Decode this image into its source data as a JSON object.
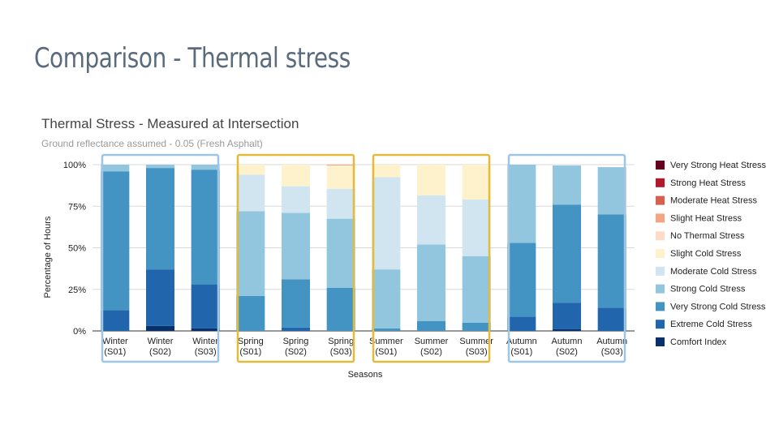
{
  "slide": {
    "title": "Comparison - Thermal stress"
  },
  "chart_data": {
    "type": "bar",
    "stacked": true,
    "title": "Thermal Stress - Measured at Intersection",
    "subtitle": "Ground reflectance assumed - 0.05 (Fresh Asphalt)",
    "xlabel": "Seasons",
    "ylabel": "Percentage of Hours",
    "ylim": [
      0,
      100
    ],
    "yticks": [
      "0%",
      "25%",
      "50%",
      "75%",
      "100%"
    ],
    "legend_position": "right",
    "grid": true,
    "categories": [
      [
        "Winter",
        "(S01)"
      ],
      [
        "Winter",
        "(S02)"
      ],
      [
        "Winter",
        "(S03)"
      ],
      [
        "Spring",
        "(S01)"
      ],
      [
        "Spring",
        "(S02)"
      ],
      [
        "Spring",
        "(S03)"
      ],
      [
        "Summer",
        "(S01)"
      ],
      [
        "Summer",
        "(S02)"
      ],
      [
        "Summer",
        "(S03)"
      ],
      [
        "Autumn",
        "(S01)"
      ],
      [
        "Autumn",
        "(S02)"
      ],
      [
        "Autumn",
        "(S03)"
      ]
    ],
    "series": [
      {
        "name": "Comfort Index",
        "color": "#08306b",
        "values": [
          0,
          3,
          1.5,
          0,
          0,
          0,
          0,
          0,
          0,
          0,
          1,
          0
        ]
      },
      {
        "name": "Extreme Cold Stress",
        "color": "#2166ac",
        "values": [
          12.5,
          34,
          26.5,
          0,
          2,
          0,
          0,
          0,
          0,
          8.5,
          16,
          14
        ]
      },
      {
        "name": "Very Strong Cold Stress",
        "color": "#4393c3",
        "values": [
          83.5,
          61,
          69,
          21,
          29,
          26,
          1.5,
          6,
          5,
          44.5,
          59,
          56
        ]
      },
      {
        "name": "Strong Cold Stress",
        "color": "#92c5de",
        "values": [
          4,
          2,
          3,
          51,
          40,
          41.5,
          35.5,
          46,
          40,
          47,
          23.5,
          28.5
        ]
      },
      {
        "name": "Moderate Cold Stress",
        "color": "#d1e5f0",
        "values": [
          0,
          0,
          0,
          22,
          16,
          18,
          55.5,
          29.5,
          34,
          0,
          0,
          0
        ]
      },
      {
        "name": "Slight Cold Stress",
        "color": "#fdf2cc",
        "values": [
          0,
          0,
          0,
          6,
          13,
          14,
          7.5,
          18.5,
          21,
          0,
          0,
          0
        ]
      },
      {
        "name": "No Thermal Stress",
        "color": "#fddbc7",
        "values": [
          0,
          0,
          0,
          0,
          0,
          0,
          0,
          0,
          0,
          0,
          0,
          0
        ]
      },
      {
        "name": "Slight Heat Stress",
        "color": "#f4a582",
        "values": [
          0,
          0,
          0,
          0,
          0,
          0.5,
          0,
          0,
          0,
          0,
          0,
          0
        ]
      },
      {
        "name": "Moderate Heat Stress",
        "color": "#d6604d",
        "values": [
          0,
          0,
          0,
          0,
          0,
          0,
          0,
          0,
          0,
          0,
          0,
          0
        ]
      },
      {
        "name": "Strong Heat Stress",
        "color": "#b2182b",
        "values": [
          0,
          0,
          0,
          0,
          0,
          0,
          0,
          0,
          0,
          0,
          0,
          0
        ]
      },
      {
        "name": "Very Strong Heat Stress",
        "color": "#67001f",
        "values": [
          0,
          0,
          0,
          0,
          0,
          0,
          0,
          0,
          0,
          0,
          0,
          0
        ]
      }
    ],
    "groups": [
      {
        "season": "Winter",
        "color": "#9ec5e3"
      },
      {
        "season": "Spring",
        "color": "#e2bb3c"
      },
      {
        "season": "Summer",
        "color": "#e2bb3c"
      },
      {
        "season": "Autumn",
        "color": "#9ec5e3"
      }
    ]
  }
}
